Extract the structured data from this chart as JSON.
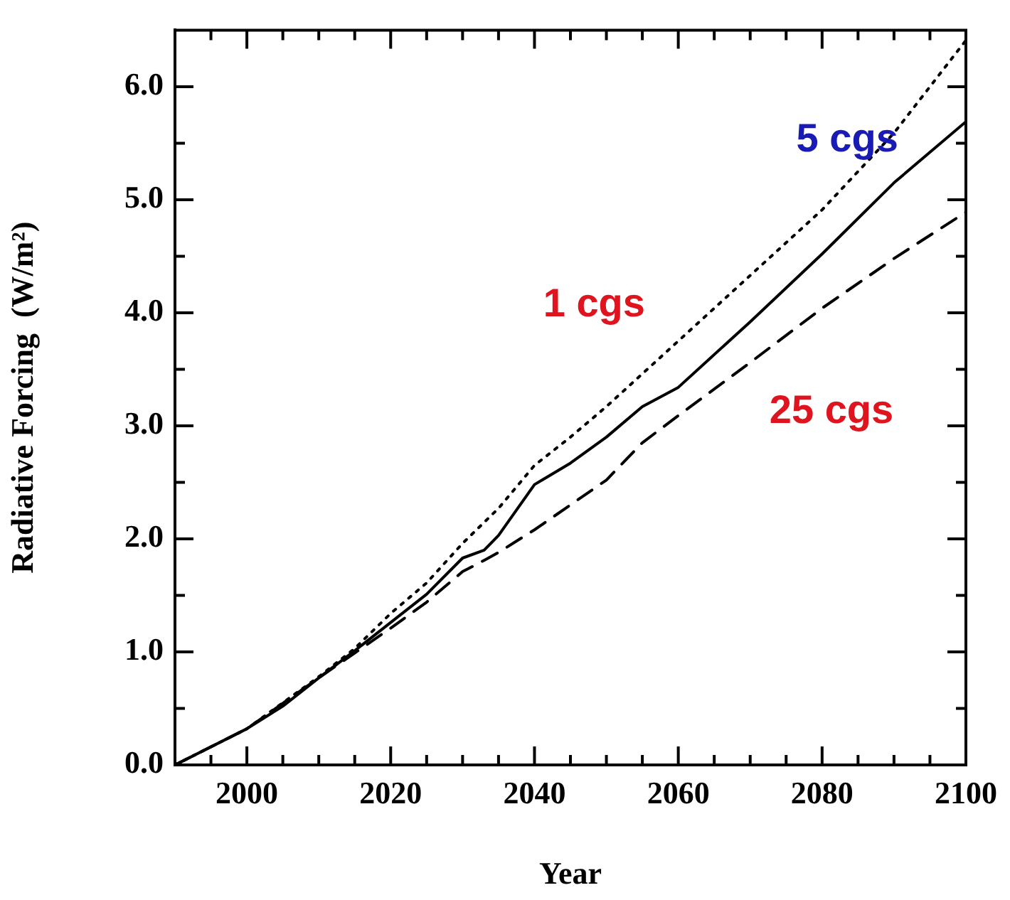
{
  "chart_data": {
    "type": "line",
    "xlabel": "Year",
    "ylabel": "Radiative Forcing  (W/m²)",
    "xlim": [
      1990,
      2100
    ],
    "xticks": [
      {
        "value": 1995,
        "label": null
      },
      2000,
      {
        "value": 2005,
        "label": null
      },
      {
        "value": 2010,
        "label": null
      },
      {
        "value": 2015,
        "label": null
      },
      2020,
      {
        "value": 2025,
        "label": null
      },
      {
        "value": 2030,
        "label": null
      },
      {
        "value": 2035,
        "label": null
      },
      2040,
      {
        "value": 2045,
        "label": null
      },
      {
        "value": 2050,
        "label": null
      },
      {
        "value": 2055,
        "label": null
      },
      2060,
      {
        "value": 2065,
        "label": null
      },
      {
        "value": 2070,
        "label": null
      },
      {
        "value": 2075,
        "label": null
      },
      2080,
      {
        "value": 2085,
        "label": null
      },
      {
        "value": 2090,
        "label": null
      },
      {
        "value": 2095,
        "label": null
      },
      2100
    ],
    "ylim": [
      0,
      6.5
    ],
    "yticks": [
      {
        "value": 0,
        "label": "0.0"
      },
      {
        "value": 0.5,
        "label": null
      },
      {
        "value": 1,
        "label": "1.0"
      },
      {
        "value": 1.5,
        "label": null
      },
      {
        "value": 2,
        "label": "2.0"
      },
      {
        "value": 2.5,
        "label": null
      },
      {
        "value": 3,
        "label": "3.0"
      },
      {
        "value": 3.5,
        "label": null
      },
      {
        "value": 4,
        "label": "4.0"
      },
      {
        "value": 4.5,
        "label": null
      },
      {
        "value": 5,
        "label": "5.0"
      },
      {
        "value": 5.5,
        "label": null
      },
      {
        "value": 6,
        "label": "6.0"
      }
    ],
    "grid": false,
    "legend": false,
    "marker": "none",
    "series": [
      {
        "color": "#000000",
        "line_style": "dotted",
        "x": [
          1990,
          2000,
          2010,
          2015,
          2020,
          2025,
          2030,
          2035,
          2040,
          2045,
          2050,
          2060,
          2070,
          2080,
          2090,
          2100
        ],
        "values": [
          0,
          0.32,
          0.78,
          1.03,
          1.34,
          1.61,
          1.96,
          2.27,
          2.65,
          2.9,
          3.17,
          3.75,
          4.33,
          4.91,
          5.59,
          6.41
        ]
      },
      {
        "color": "#000000",
        "line_style": "solid",
        "x": [
          1990,
          2000,
          2005,
          2010,
          2015,
          2020,
          2025,
          2030,
          2033,
          2035,
          2040,
          2045,
          2050,
          2055,
          2060,
          2070,
          2080,
          2090,
          2100
        ],
        "values": [
          0,
          0.32,
          0.52,
          0.77,
          1.01,
          1.26,
          1.51,
          1.83,
          1.9,
          2.03,
          2.48,
          2.67,
          2.9,
          3.17,
          3.34,
          3.92,
          4.52,
          5.15,
          5.69
        ]
      },
      {
        "color": "#000000",
        "line_style": "dashed",
        "x": [
          1990,
          2000,
          2010,
          2015,
          2020,
          2025,
          2030,
          2033,
          2035,
          2040,
          2045,
          2050,
          2055,
          2060,
          2070,
          2080,
          2090,
          2100
        ],
        "values": [
          0,
          0.32,
          0.77,
          0.99,
          1.21,
          1.44,
          1.71,
          1.81,
          1.88,
          2.08,
          2.3,
          2.52,
          2.85,
          3.09,
          3.56,
          4.04,
          4.48,
          4.89
        ]
      }
    ],
    "annotations": [
      "1 cgs",
      "5 cgs",
      "25 cgs"
    ]
  }
}
